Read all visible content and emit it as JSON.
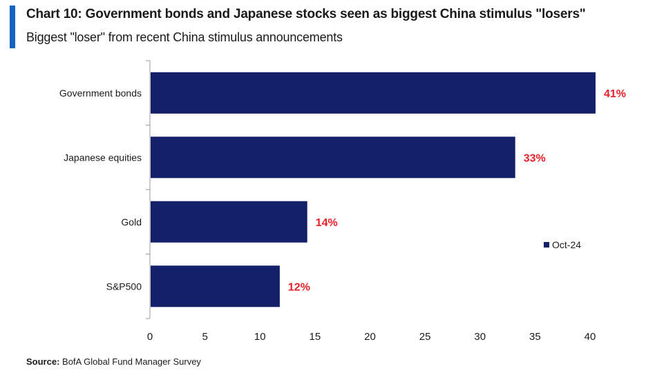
{
  "header": {
    "title": "Chart 10: Government bonds and Japanese stocks seen as biggest China stimulus \"losers\"",
    "subtitle": "Biggest \"loser\" from recent China stimulus announcements"
  },
  "footer": {
    "source_label": "Source:",
    "source_text": "BofA Global Fund Manager Survey"
  },
  "colors": {
    "accent": "#1565c0",
    "bar": "#14206a",
    "value_label": "#e8202a",
    "axis": "#999999"
  },
  "chart_data": {
    "type": "bar",
    "orientation": "horizontal",
    "categories": [
      "Government bonds",
      "Japanese equities",
      "Gold",
      "S&P500"
    ],
    "series": [
      {
        "name": "Oct-24",
        "values": [
          40.5,
          33.2,
          14.3,
          11.8
        ],
        "labels": [
          "41%",
          "33%",
          "14%",
          "12%"
        ]
      }
    ],
    "xlim": [
      0,
      40
    ],
    "xticks": [
      0,
      5,
      10,
      15,
      20,
      25,
      30,
      35,
      40
    ],
    "grid": false,
    "legend": "right"
  }
}
